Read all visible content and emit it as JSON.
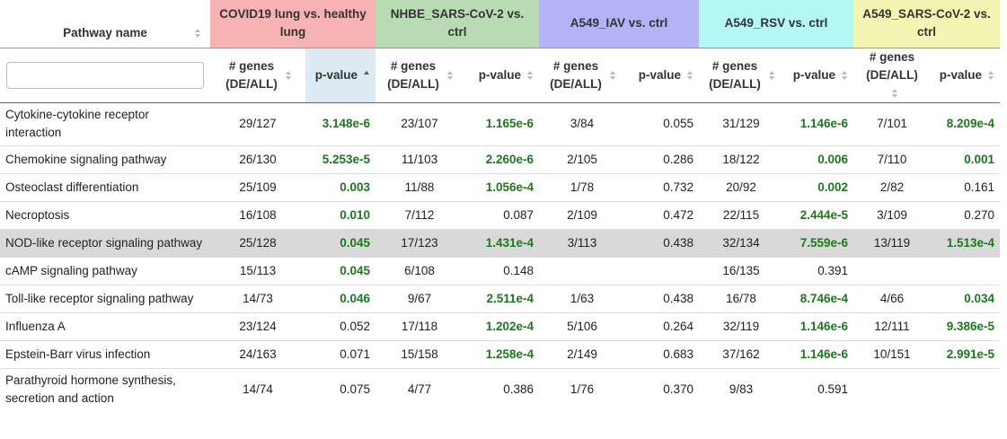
{
  "header": {
    "pathway_label": "Pathway name",
    "groups": [
      {
        "label": "COVID19 lung vs. healthy lung",
        "color": "#f7b3b3"
      },
      {
        "label": "NHBE_SARS-CoV-2 vs. ctrl",
        "color": "#b9dbb4"
      },
      {
        "label": "A549_IAV vs. ctrl",
        "color": "#b3b3f5"
      },
      {
        "label": "A549_RSV vs. ctrl",
        "color": "#b5f7f5"
      },
      {
        "label": "A549_SARS-CoV-2 vs. ctrl",
        "color": "#f5f5b3"
      }
    ],
    "count_label": "# genes (DE/ALL)",
    "pvalue_label": "p-value"
  },
  "filter": {
    "value": "",
    "placeholder": ""
  },
  "colors": {
    "significant": "#1a7a1a",
    "selected_row": "#d9d9d9",
    "sorted_column": "#ddeaf3"
  },
  "rows": [
    {
      "name": "Cytokine-cytokine receptor interaction",
      "cells": [
        [
          "29/127",
          "3.148e-6",
          true
        ],
        [
          "23/107",
          "1.165e-6",
          true
        ],
        [
          "3/84",
          "0.055",
          false
        ],
        [
          "31/129",
          "1.146e-6",
          true
        ],
        [
          "7/101",
          "8.209e-4",
          true
        ]
      ]
    },
    {
      "name": "Chemokine signaling pathway",
      "cells": [
        [
          "26/130",
          "5.253e-5",
          true
        ],
        [
          "11/103",
          "2.260e-6",
          true
        ],
        [
          "2/105",
          "0.286",
          false
        ],
        [
          "18/122",
          "0.006",
          true
        ],
        [
          "7/110",
          "0.001",
          true
        ]
      ]
    },
    {
      "name": "Osteoclast differentiation",
      "cells": [
        [
          "25/109",
          "0.003",
          true
        ],
        [
          "11/88",
          "1.056e-4",
          true
        ],
        [
          "1/78",
          "0.732",
          false
        ],
        [
          "20/92",
          "0.002",
          true
        ],
        [
          "2/82",
          "0.161",
          false
        ]
      ]
    },
    {
      "name": "Necroptosis",
      "cells": [
        [
          "16/108",
          "0.010",
          true
        ],
        [
          "7/112",
          "0.087",
          false
        ],
        [
          "2/109",
          "0.472",
          false
        ],
        [
          "22/115",
          "2.444e-5",
          true
        ],
        [
          "3/109",
          "0.270",
          false
        ]
      ]
    },
    {
      "name": "NOD-like receptor signaling pathway",
      "selected": true,
      "cells": [
        [
          "25/128",
          "0.045",
          true
        ],
        [
          "17/123",
          "1.431e-4",
          true
        ],
        [
          "3/113",
          "0.438",
          false
        ],
        [
          "32/134",
          "7.559e-6",
          true
        ],
        [
          "13/119",
          "1.513e-4",
          true
        ]
      ]
    },
    {
      "name": "cAMP signaling pathway",
      "cells": [
        [
          "15/113",
          "0.045",
          true
        ],
        [
          "6/108",
          "0.148",
          false
        ],
        [
          "",
          "",
          false
        ],
        [
          "16/135",
          "0.391",
          false
        ],
        [
          "",
          "",
          false
        ]
      ]
    },
    {
      "name": "Toll-like receptor signaling pathway",
      "cells": [
        [
          "14/73",
          "0.046",
          true
        ],
        [
          "9/67",
          "2.511e-4",
          true
        ],
        [
          "1/63",
          "0.438",
          false
        ],
        [
          "16/78",
          "8.746e-4",
          true
        ],
        [
          "4/66",
          "0.034",
          true
        ]
      ]
    },
    {
      "name": "Influenza A",
      "cells": [
        [
          "23/124",
          "0.052",
          false
        ],
        [
          "17/118",
          "1.202e-4",
          true
        ],
        [
          "5/106",
          "0.264",
          false
        ],
        [
          "32/119",
          "1.146e-6",
          true
        ],
        [
          "12/111",
          "9.386e-5",
          true
        ]
      ]
    },
    {
      "name": "Epstein-Barr virus infection",
      "cells": [
        [
          "24/163",
          "0.071",
          false
        ],
        [
          "15/158",
          "1.258e-4",
          true
        ],
        [
          "2/149",
          "0.683",
          false
        ],
        [
          "37/162",
          "1.146e-6",
          true
        ],
        [
          "10/151",
          "2.991e-5",
          true
        ]
      ]
    },
    {
      "name": "Parathyroid hormone synthesis, secretion and action",
      "cells": [
        [
          "14/74",
          "0.075",
          false
        ],
        [
          "4/77",
          "0.386",
          false
        ],
        [
          "1/76",
          "0.370",
          false
        ],
        [
          "9/83",
          "0.591",
          false
        ],
        [
          "",
          "",
          false
        ]
      ]
    }
  ]
}
